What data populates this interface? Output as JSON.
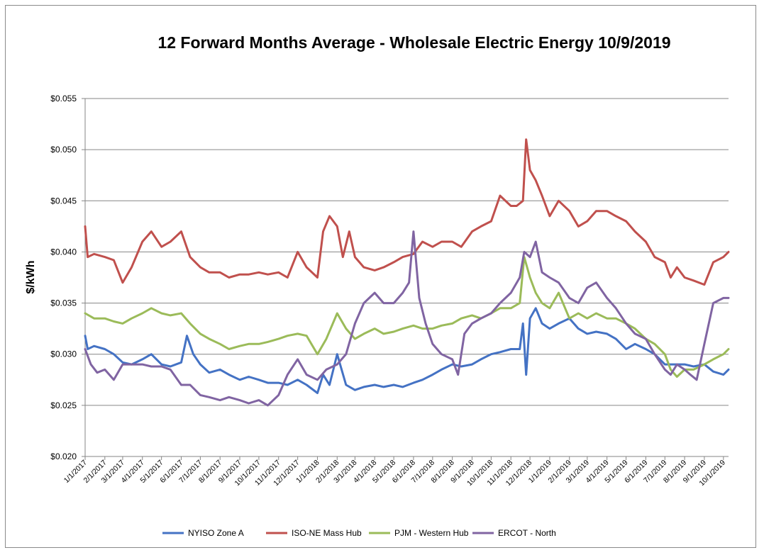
{
  "chart_data": {
    "type": "line",
    "title": "12 Forward Months Average - Wholesale Electric Energy 10/9/2019",
    "ylabel": "$/kWh",
    "xlabel": "",
    "ylim": [
      0.02,
      0.055
    ],
    "xlim": [
      "2017-01-01",
      "2019-10-09"
    ],
    "y_ticks": [
      0.055,
      0.05,
      0.045,
      0.04,
      0.035,
      0.03,
      0.025,
      0.02
    ],
    "y_tick_labels": [
      "$0.055",
      "$0.050",
      "$0.045",
      "$0.040",
      "$0.035",
      "$0.030",
      "$0.025",
      "$0.020"
    ],
    "x_tick_dates": [
      "2017-01-01",
      "2017-02-01",
      "2017-03-01",
      "2017-04-01",
      "2017-05-01",
      "2017-06-01",
      "2017-07-01",
      "2017-08-01",
      "2017-09-01",
      "2017-10-01",
      "2017-11-01",
      "2017-12-01",
      "2018-01-01",
      "2018-02-01",
      "2018-03-01",
      "2018-04-01",
      "2018-05-01",
      "2018-06-01",
      "2018-07-01",
      "2018-08-01",
      "2018-09-01",
      "2018-10-01",
      "2018-11-01",
      "2018-12-01",
      "2019-01-01",
      "2019-02-01",
      "2019-03-01",
      "2019-04-01",
      "2019-05-01",
      "2019-06-01",
      "2019-07-01",
      "2019-08-01",
      "2019-09-01",
      "2019-10-01"
    ],
    "x_tick_labels": [
      "1/1/2017",
      "2/1/2017",
      "3/1/2017",
      "4/1/2017",
      "5/1/2017",
      "6/1/2017",
      "7/1/2017",
      "8/1/2017",
      "9/1/2017",
      "10/1/2017",
      "11/1/2017",
      "12/1/2017",
      "1/1/2018",
      "2/1/2018",
      "3/1/2018",
      "4/1/2018",
      "5/1/2018",
      "6/1/2018",
      "7/1/2018",
      "8/1/2018",
      "9/1/2018",
      "10/1/2018",
      "11/1/2018",
      "12/1/2018",
      "1/1/2019",
      "2/1/2019",
      "3/1/2019",
      "4/1/2019",
      "5/1/2019",
      "6/1/2019",
      "7/1/2019",
      "8/1/2019",
      "9/1/2019",
      "10/1/2019"
    ],
    "grid": "horizontal",
    "legend_position": "bottom",
    "series": [
      {
        "name": "NYISO Zone A",
        "color": "#4472C4",
        "x": [
          "2017-01-01",
          "2017-01-05",
          "2017-01-15",
          "2017-02-01",
          "2017-02-15",
          "2017-03-01",
          "2017-03-15",
          "2017-04-01",
          "2017-04-15",
          "2017-05-01",
          "2017-05-15",
          "2017-06-01",
          "2017-06-10",
          "2017-06-20",
          "2017-07-01",
          "2017-07-15",
          "2017-08-01",
          "2017-08-15",
          "2017-09-01",
          "2017-09-15",
          "2017-10-01",
          "2017-10-15",
          "2017-11-01",
          "2017-11-15",
          "2017-12-01",
          "2017-12-15",
          "2018-01-01",
          "2018-01-10",
          "2018-01-20",
          "2018-02-01",
          "2018-02-15",
          "2018-03-01",
          "2018-03-15",
          "2018-04-01",
          "2018-04-15",
          "2018-05-01",
          "2018-05-15",
          "2018-06-01",
          "2018-06-15",
          "2018-07-01",
          "2018-07-15",
          "2018-08-01",
          "2018-08-15",
          "2018-09-01",
          "2018-09-15",
          "2018-10-01",
          "2018-10-15",
          "2018-11-01",
          "2018-11-15",
          "2018-11-20",
          "2018-11-25",
          "2018-12-01",
          "2018-12-10",
          "2018-12-20",
          "2019-01-01",
          "2019-01-15",
          "2019-02-01",
          "2019-02-15",
          "2019-03-01",
          "2019-03-15",
          "2019-04-01",
          "2019-04-15",
          "2019-05-01",
          "2019-05-15",
          "2019-06-01",
          "2019-06-15",
          "2019-07-01",
          "2019-07-15",
          "2019-08-01",
          "2019-08-15",
          "2019-09-01",
          "2019-09-15",
          "2019-10-01",
          "2019-10-09"
        ],
        "y": [
          0.0318,
          0.0305,
          0.0308,
          0.0305,
          0.03,
          0.0292,
          0.029,
          0.0295,
          0.03,
          0.029,
          0.0288,
          0.0292,
          0.0318,
          0.03,
          0.029,
          0.0282,
          0.0285,
          0.028,
          0.0275,
          0.0278,
          0.0275,
          0.0272,
          0.0272,
          0.027,
          0.0275,
          0.027,
          0.0262,
          0.028,
          0.027,
          0.03,
          0.027,
          0.0265,
          0.0268,
          0.027,
          0.0268,
          0.027,
          0.0268,
          0.0272,
          0.0275,
          0.028,
          0.0285,
          0.029,
          0.0288,
          0.029,
          0.0295,
          0.03,
          0.0302,
          0.0305,
          0.0305,
          0.033,
          0.028,
          0.0335,
          0.0345,
          0.033,
          0.0325,
          0.033,
          0.0335,
          0.0325,
          0.032,
          0.0322,
          0.032,
          0.0315,
          0.0305,
          0.031,
          0.0305,
          0.03,
          0.029,
          0.029,
          0.029,
          0.0288,
          0.029,
          0.0283,
          0.028,
          0.0285
        ]
      },
      {
        "name": "ISO-NE Mass Hub",
        "color": "#C0504D",
        "x": [
          "2017-01-01",
          "2017-01-05",
          "2017-01-15",
          "2017-02-01",
          "2017-02-15",
          "2017-03-01",
          "2017-03-15",
          "2017-04-01",
          "2017-04-15",
          "2017-05-01",
          "2017-05-15",
          "2017-06-01",
          "2017-06-15",
          "2017-07-01",
          "2017-07-15",
          "2017-08-01",
          "2017-08-15",
          "2017-09-01",
          "2017-09-15",
          "2017-10-01",
          "2017-10-15",
          "2017-11-01",
          "2017-11-15",
          "2017-12-01",
          "2017-12-15",
          "2018-01-01",
          "2018-01-10",
          "2018-01-20",
          "2018-02-01",
          "2018-02-10",
          "2018-02-20",
          "2018-03-01",
          "2018-03-15",
          "2018-04-01",
          "2018-04-15",
          "2018-05-01",
          "2018-05-15",
          "2018-06-01",
          "2018-06-15",
          "2018-07-01",
          "2018-07-15",
          "2018-08-01",
          "2018-08-15",
          "2018-09-01",
          "2018-09-15",
          "2018-10-01",
          "2018-10-15",
          "2018-11-01",
          "2018-11-10",
          "2018-11-20",
          "2018-11-25",
          "2018-12-01",
          "2018-12-10",
          "2018-12-20",
          "2019-01-01",
          "2019-01-15",
          "2019-02-01",
          "2019-02-15",
          "2019-03-01",
          "2019-03-15",
          "2019-04-01",
          "2019-04-15",
          "2019-05-01",
          "2019-05-15",
          "2019-06-01",
          "2019-06-15",
          "2019-07-01",
          "2019-07-10",
          "2019-07-20",
          "2019-08-01",
          "2019-08-15",
          "2019-09-01",
          "2019-09-15",
          "2019-10-01",
          "2019-10-09"
        ],
        "y": [
          0.0425,
          0.0395,
          0.0398,
          0.0395,
          0.0392,
          0.037,
          0.0385,
          0.041,
          0.042,
          0.0405,
          0.041,
          0.042,
          0.0395,
          0.0385,
          0.038,
          0.038,
          0.0375,
          0.0378,
          0.0378,
          0.038,
          0.0378,
          0.038,
          0.0375,
          0.04,
          0.0385,
          0.0375,
          0.042,
          0.0435,
          0.0425,
          0.0395,
          0.042,
          0.0395,
          0.0385,
          0.0382,
          0.0385,
          0.039,
          0.0395,
          0.0398,
          0.041,
          0.0405,
          0.041,
          0.041,
          0.0405,
          0.042,
          0.0425,
          0.043,
          0.0455,
          0.0445,
          0.0445,
          0.045,
          0.051,
          0.048,
          0.047,
          0.0455,
          0.0435,
          0.045,
          0.044,
          0.0425,
          0.043,
          0.044,
          0.044,
          0.0435,
          0.043,
          0.042,
          0.041,
          0.0395,
          0.039,
          0.0375,
          0.0385,
          0.0375,
          0.0372,
          0.0368,
          0.039,
          0.0395,
          0.04
        ]
      },
      {
        "name": "PJM - Western Hub",
        "color": "#9BBB59",
        "x": [
          "2017-01-01",
          "2017-01-15",
          "2017-02-01",
          "2017-02-15",
          "2017-03-01",
          "2017-03-15",
          "2017-04-01",
          "2017-04-15",
          "2017-05-01",
          "2017-05-15",
          "2017-06-01",
          "2017-06-15",
          "2017-07-01",
          "2017-07-15",
          "2017-08-01",
          "2017-08-15",
          "2017-09-01",
          "2017-09-15",
          "2017-10-01",
          "2017-10-15",
          "2017-11-01",
          "2017-11-15",
          "2017-12-01",
          "2017-12-15",
          "2018-01-01",
          "2018-01-15",
          "2018-02-01",
          "2018-02-15",
          "2018-03-01",
          "2018-03-15",
          "2018-04-01",
          "2018-04-15",
          "2018-05-01",
          "2018-05-15",
          "2018-06-01",
          "2018-06-15",
          "2018-07-01",
          "2018-07-15",
          "2018-08-01",
          "2018-08-15",
          "2018-09-01",
          "2018-09-15",
          "2018-10-01",
          "2018-10-15",
          "2018-11-01",
          "2018-11-15",
          "2018-11-22",
          "2018-12-01",
          "2018-12-10",
          "2018-12-20",
          "2019-01-01",
          "2019-01-15",
          "2019-02-01",
          "2019-02-15",
          "2019-03-01",
          "2019-03-15",
          "2019-04-01",
          "2019-04-15",
          "2019-05-01",
          "2019-05-15",
          "2019-06-01",
          "2019-06-15",
          "2019-07-01",
          "2019-07-10",
          "2019-07-20",
          "2019-08-01",
          "2019-08-15",
          "2019-09-01",
          "2019-09-15",
          "2019-10-01",
          "2019-10-09"
        ],
        "y": [
          0.034,
          0.0335,
          0.0335,
          0.0332,
          0.033,
          0.0335,
          0.034,
          0.0345,
          0.034,
          0.0338,
          0.034,
          0.033,
          0.032,
          0.0315,
          0.031,
          0.0305,
          0.0308,
          0.031,
          0.031,
          0.0312,
          0.0315,
          0.0318,
          0.032,
          0.0318,
          0.03,
          0.0315,
          0.034,
          0.0325,
          0.0315,
          0.032,
          0.0325,
          0.032,
          0.0322,
          0.0325,
          0.0328,
          0.0325,
          0.0325,
          0.0328,
          0.033,
          0.0335,
          0.0338,
          0.0335,
          0.034,
          0.0345,
          0.0345,
          0.035,
          0.0395,
          0.0375,
          0.036,
          0.035,
          0.0345,
          0.036,
          0.0335,
          0.034,
          0.0335,
          0.034,
          0.0335,
          0.0335,
          0.033,
          0.0325,
          0.0315,
          0.031,
          0.03,
          0.0285,
          0.0278,
          0.0285,
          0.0285,
          0.029,
          0.0295,
          0.03,
          0.0305
        ]
      },
      {
        "name": "ERCOT - North",
        "color": "#8064A2",
        "x": [
          "2017-01-01",
          "2017-01-10",
          "2017-01-20",
          "2017-02-01",
          "2017-02-15",
          "2017-03-01",
          "2017-03-15",
          "2017-04-01",
          "2017-04-15",
          "2017-05-01",
          "2017-05-15",
          "2017-06-01",
          "2017-06-15",
          "2017-07-01",
          "2017-07-15",
          "2017-08-01",
          "2017-08-15",
          "2017-09-01",
          "2017-09-15",
          "2017-10-01",
          "2017-10-15",
          "2017-11-01",
          "2017-11-15",
          "2017-12-01",
          "2017-12-15",
          "2018-01-01",
          "2018-01-15",
          "2018-02-01",
          "2018-02-15",
          "2018-03-01",
          "2018-03-15",
          "2018-04-01",
          "2018-04-15",
          "2018-05-01",
          "2018-05-15",
          "2018-05-25",
          "2018-06-01",
          "2018-06-10",
          "2018-06-20",
          "2018-07-01",
          "2018-07-15",
          "2018-08-01",
          "2018-08-10",
          "2018-08-20",
          "2018-09-01",
          "2018-09-15",
          "2018-10-01",
          "2018-10-15",
          "2018-11-01",
          "2018-11-15",
          "2018-11-22",
          "2018-12-01",
          "2018-12-10",
          "2018-12-20",
          "2019-01-01",
          "2019-01-15",
          "2019-02-01",
          "2019-02-15",
          "2019-03-01",
          "2019-03-15",
          "2019-04-01",
          "2019-04-15",
          "2019-05-01",
          "2019-05-15",
          "2019-06-01",
          "2019-06-15",
          "2019-07-01",
          "2019-07-10",
          "2019-07-20",
          "2019-08-01",
          "2019-08-10",
          "2019-08-20",
          "2019-09-01",
          "2019-09-15",
          "2019-10-01",
          "2019-10-09"
        ],
        "y": [
          0.0305,
          0.029,
          0.0282,
          0.0285,
          0.0275,
          0.029,
          0.029,
          0.029,
          0.0288,
          0.0288,
          0.0285,
          0.027,
          0.027,
          0.026,
          0.0258,
          0.0255,
          0.0258,
          0.0255,
          0.0252,
          0.0255,
          0.025,
          0.026,
          0.028,
          0.0295,
          0.028,
          0.0275,
          0.0285,
          0.029,
          0.03,
          0.033,
          0.035,
          0.036,
          0.035,
          0.035,
          0.036,
          0.037,
          0.042,
          0.0355,
          0.033,
          0.031,
          0.03,
          0.0295,
          0.028,
          0.032,
          0.033,
          0.0335,
          0.034,
          0.035,
          0.036,
          0.0375,
          0.04,
          0.0395,
          0.041,
          0.038,
          0.0375,
          0.037,
          0.0355,
          0.035,
          0.0365,
          0.037,
          0.0355,
          0.0345,
          0.033,
          0.032,
          0.0315,
          0.03,
          0.0285,
          0.028,
          0.029,
          0.0285,
          0.028,
          0.0275,
          0.031,
          0.035,
          0.0355,
          0.0355
        ]
      }
    ]
  }
}
